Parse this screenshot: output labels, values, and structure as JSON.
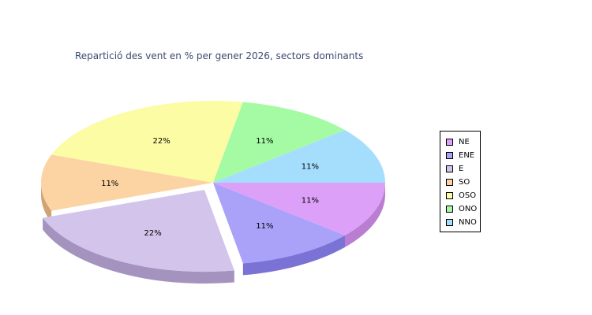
{
  "chart_data": {
    "type": "pie",
    "title": "Repartició des vent en % per gener 2026, sectors dominants",
    "slices": [
      {
        "name": "NE",
        "value": 11,
        "label": "11%",
        "color": "#dda0f8",
        "side": "#b97ed2",
        "exploded": false
      },
      {
        "name": "ENE",
        "value": 11,
        "label": "11%",
        "color": "#aaa2f8",
        "side": "#7b72d6",
        "exploded": false
      },
      {
        "name": "E",
        "value": 22,
        "label": "22%",
        "color": "#d2c4ea",
        "side": "#a493bf",
        "exploded": true
      },
      {
        "name": "SO",
        "value": 11,
        "label": "11%",
        "color": "#fcd3a2",
        "side": "#d0a472",
        "exploded": false
      },
      {
        "name": "OSO",
        "value": 22,
        "label": "22%",
        "color": "#fbfca4",
        "side": "#cfd07a",
        "exploded": false
      },
      {
        "name": "ONO",
        "value": 11,
        "label": "11%",
        "color": "#a5faa4",
        "side": "#7bcf7a",
        "exploded": false
      },
      {
        "name": "NNO",
        "value": 11,
        "label": "11%",
        "color": "#a5defd",
        "side": "#7bb3d4",
        "exploded": false
      }
    ],
    "start_angle_deg": 0,
    "direction": "clockwise",
    "legend_position": "right"
  }
}
